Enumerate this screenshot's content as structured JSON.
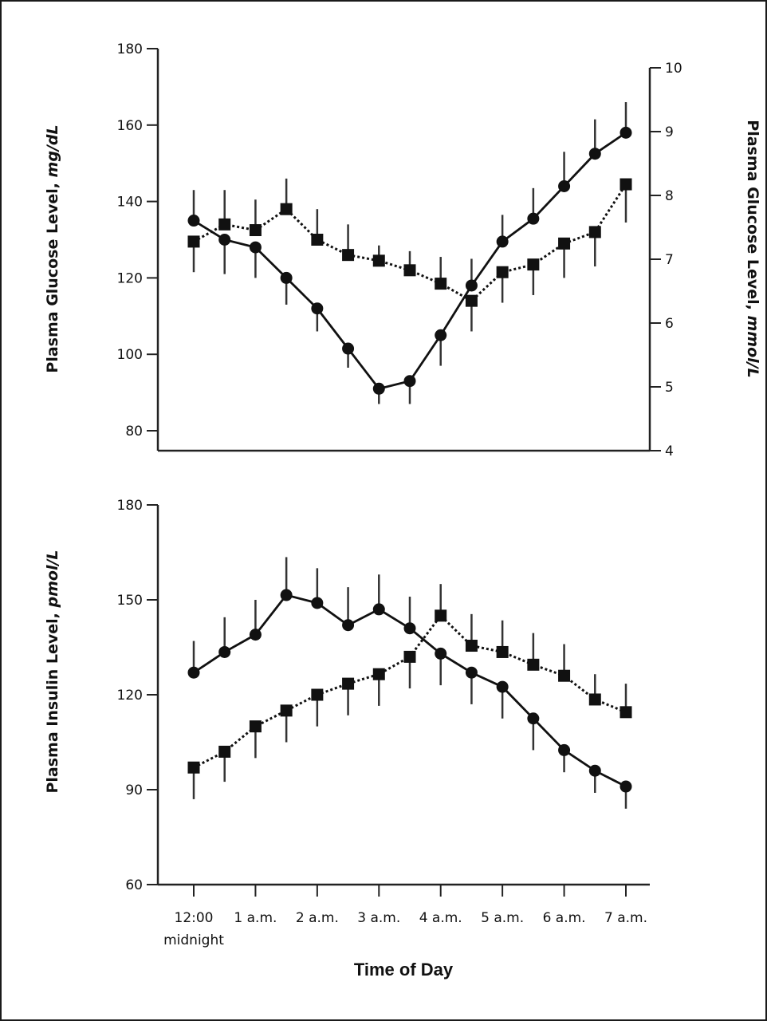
{
  "chart_data": [
    {
      "type": "line",
      "title": "",
      "ylabel": "Plasma Glucose Level, ",
      "ylabel_unit": "mg/dL",
      "y2label": "Plasma Glucose Level, ",
      "y2label_unit": "mmol/L",
      "ylim": [
        80,
        180
      ],
      "yticks": [
        80,
        100,
        120,
        140,
        160,
        180
      ],
      "y2lim": [
        4,
        10
      ],
      "y2ticks": [
        4,
        5,
        6,
        7,
        8,
        9,
        10
      ],
      "x": [
        0,
        0.5,
        1,
        1.5,
        2,
        2.5,
        3,
        3.5,
        4,
        4.5,
        5,
        5.5,
        6,
        6.5,
        7
      ],
      "grid": false,
      "series": [
        {
          "name": "circles (solid line)",
          "marker": "circle",
          "line": "solid",
          "values": [
            135,
            130,
            128,
            120,
            112,
            101.5,
            91,
            93,
            105,
            118,
            129.5,
            135.5,
            144,
            152.5,
            158
          ],
          "error": [
            8,
            9,
            8,
            7,
            6,
            5,
            4,
            6,
            8,
            7,
            7,
            8,
            9,
            9,
            8
          ],
          "error_dir": [
            "up",
            "down",
            "down",
            "down",
            "down",
            "down",
            "down",
            "down",
            "down",
            "up",
            "up",
            "up",
            "up",
            "up",
            "up"
          ]
        },
        {
          "name": "squares (dotted line)",
          "marker": "square",
          "line": "dotted",
          "values": [
            129.5,
            134,
            132.5,
            138,
            130,
            126,
            124.5,
            122,
            118.5,
            114,
            121.5,
            123.5,
            129,
            132,
            144.5
          ],
          "error": [
            8,
            9,
            8,
            8,
            8,
            8,
            4,
            5,
            7,
            8,
            8,
            8,
            9,
            9,
            10
          ],
          "error_dir": [
            "down",
            "up",
            "up",
            "up",
            "up",
            "up",
            "up",
            "up",
            "up",
            "down",
            "down",
            "down",
            "down",
            "down",
            "down"
          ]
        }
      ]
    },
    {
      "type": "line",
      "title": "",
      "ylabel": "Plasma Insulin Level, ",
      "ylabel_unit": "pmol/L",
      "ylim": [
        60,
        180
      ],
      "yticks": [
        60,
        90,
        120,
        150,
        180
      ],
      "x": [
        0,
        0.5,
        1,
        1.5,
        2,
        2.5,
        3,
        3.5,
        4,
        4.5,
        5,
        5.5,
        6,
        6.5,
        7
      ],
      "xticks": [
        0,
        1,
        2,
        3,
        4,
        5,
        6,
        7
      ],
      "xtick_labels": [
        "12:00",
        "1 a.m.",
        "2 a.m.",
        "3 a.m.",
        "4 a.m.",
        "5 a.m.",
        "6 a.m.",
        "7 a.m."
      ],
      "xtick_sublabel": "midnight",
      "xlabel": "Time of Day",
      "grid": false,
      "series": [
        {
          "name": "circles (solid line)",
          "marker": "circle",
          "line": "solid",
          "values": [
            127,
            133.5,
            139,
            151.5,
            149,
            142,
            147,
            141,
            133,
            127,
            122.5,
            112.5,
            102.5,
            96,
            91
          ],
          "error": [
            10,
            11,
            11,
            12,
            11,
            12,
            11,
            10,
            10,
            10,
            10,
            10,
            7,
            7,
            7
          ],
          "error_dir": [
            "up",
            "up",
            "up",
            "up",
            "up",
            "up",
            "up",
            "up",
            "down",
            "down",
            "down",
            "down",
            "down",
            "down",
            "down"
          ]
        },
        {
          "name": "squares (dotted line)",
          "marker": "square",
          "line": "dotted",
          "values": [
            97,
            102,
            110,
            115,
            120,
            123.5,
            126.5,
            132,
            145,
            135.5,
            133.5,
            129.5,
            126,
            118.5,
            114.5
          ],
          "error": [
            10,
            9.5,
            10,
            10,
            10,
            10,
            10,
            10,
            10,
            10,
            10,
            10,
            10,
            8,
            9
          ],
          "error_dir": [
            "down",
            "down",
            "down",
            "down",
            "down",
            "down",
            "down",
            "down",
            "up",
            "up",
            "up",
            "up",
            "up",
            "up",
            "up"
          ]
        }
      ]
    }
  ]
}
